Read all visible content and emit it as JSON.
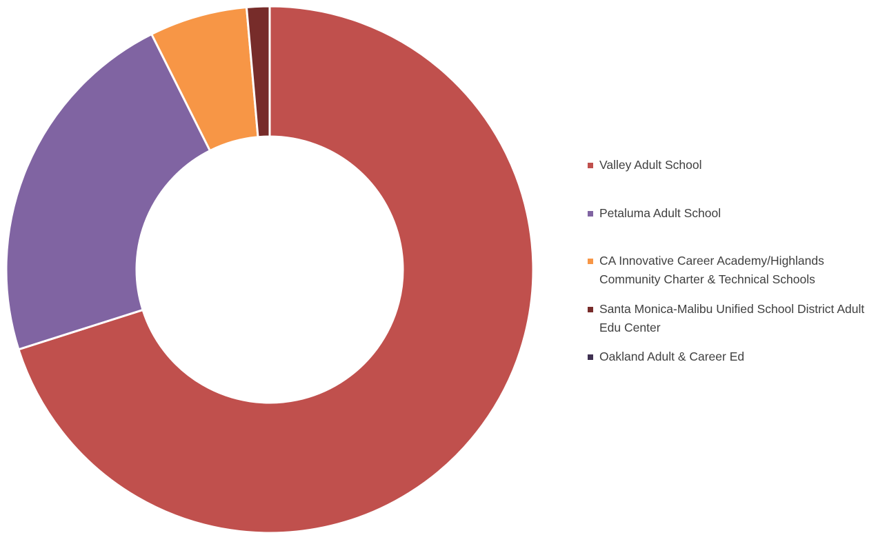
{
  "chart_data": {
    "type": "donut",
    "categories": [
      "Valley Adult School",
      "Petaluma Adult School",
      "CA Innovative Career Academy/Highlands Community Charter & Technical Schools",
      "Santa Monica-Malibu Unified School District Adult Edu Center",
      "Oakland Adult & Career Ed"
    ],
    "values": [
      70.1,
      22.5,
      6.0,
      1.4,
      0
    ],
    "colors": [
      "#c0504d",
      "#8064a2",
      "#f79646",
      "#772c2a",
      "#3f3151"
    ],
    "legend": "right"
  }
}
